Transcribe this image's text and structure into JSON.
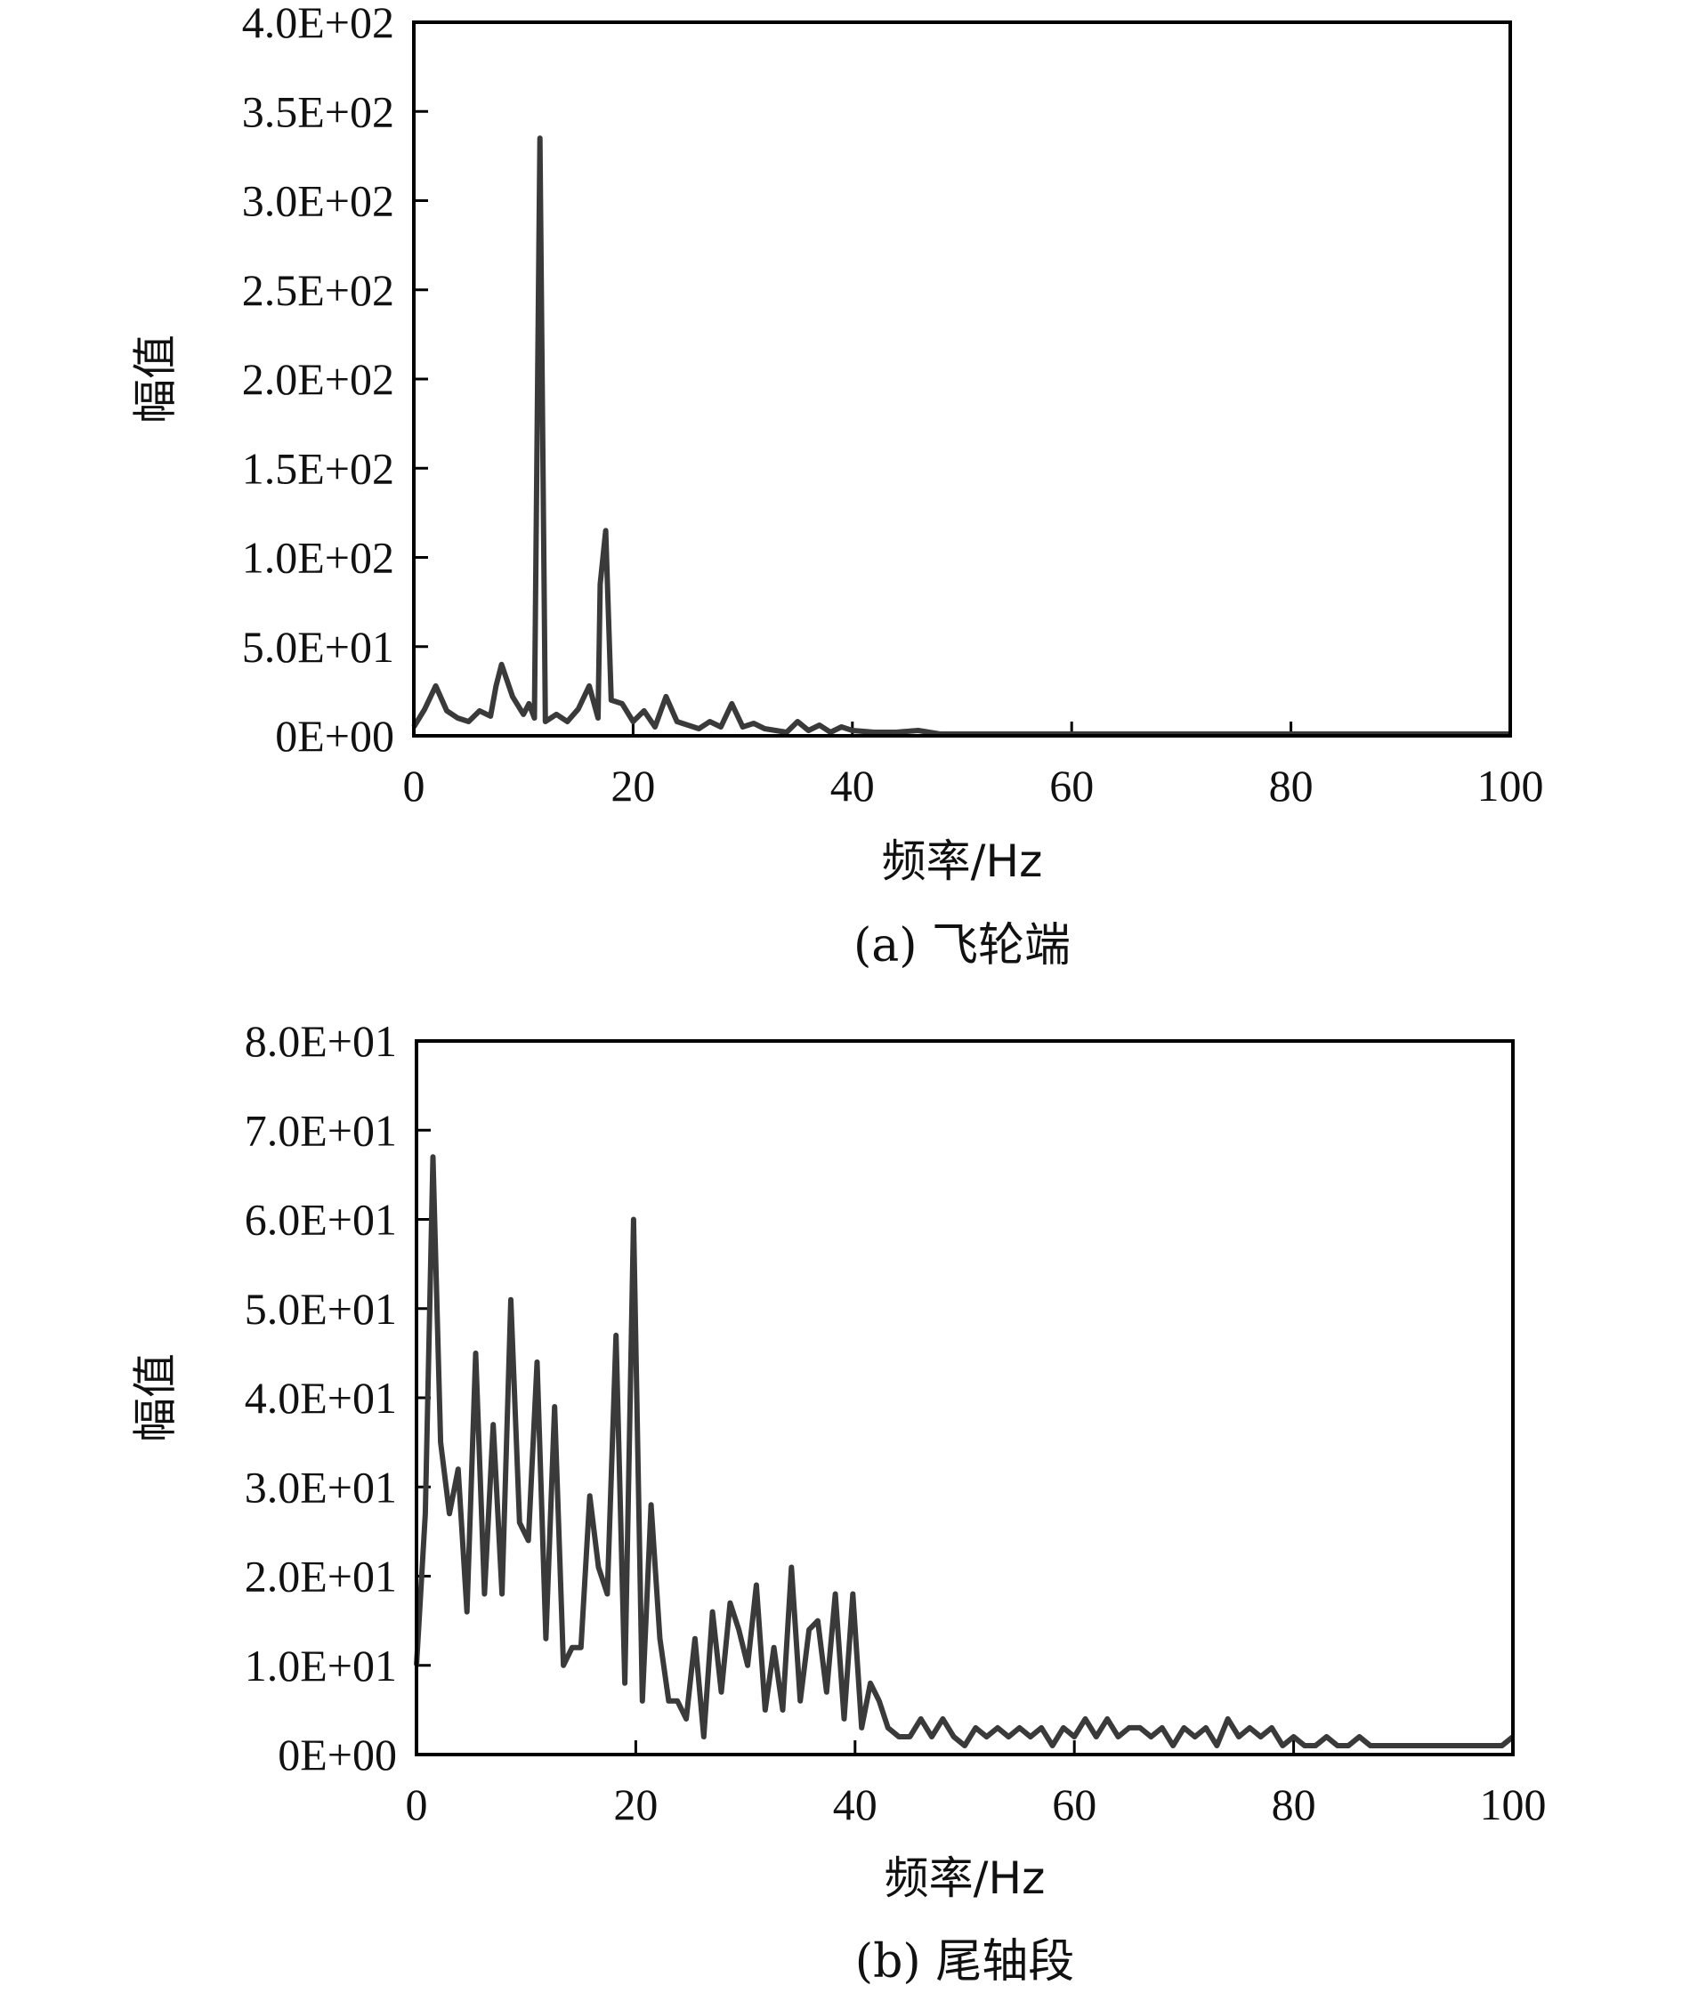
{
  "chart_data": [
    {
      "type": "line",
      "caption": "(a) 飞轮端",
      "xlabel": "频率/Hz",
      "ylabel": "幅值",
      "xlim": [
        0,
        100
      ],
      "ylim": [
        0,
        400
      ],
      "xticks": [
        0,
        20,
        40,
        60,
        80,
        100
      ],
      "xtick_labels": [
        "0",
        "20",
        "40",
        "60",
        "80",
        "100"
      ],
      "yticks": [
        0,
        50,
        100,
        150,
        200,
        250,
        300,
        350,
        400
      ],
      "ytick_labels": [
        "0E+00",
        "5.0E+01",
        "1.0E+02",
        "1.5E+02",
        "2.0E+02",
        "2.5E+02",
        "3.0E+02",
        "3.5E+02",
        "4.0E+02"
      ],
      "grid": false,
      "line_color": "#3a3a3a",
      "series": [
        {
          "x": [
            0,
            1,
            2,
            3,
            4,
            5,
            6,
            7,
            7.5,
            8,
            9,
            10,
            10.5,
            11,
            11.5,
            12,
            13,
            14,
            15,
            16,
            16.8,
            17,
            17.5,
            18,
            19,
            20,
            21,
            22,
            23,
            24,
            25,
            26,
            27,
            28,
            29,
            30,
            31,
            32,
            33,
            34,
            35,
            36,
            37,
            38,
            39,
            40,
            42,
            44,
            46,
            48,
            50,
            60,
            70,
            80,
            90,
            100
          ],
          "y": [
            5,
            15,
            28,
            14,
            10,
            8,
            14,
            11,
            28,
            40,
            22,
            12,
            18,
            10,
            335,
            8,
            12,
            8,
            15,
            28,
            10,
            85,
            115,
            20,
            18,
            8,
            14,
            5,
            22,
            8,
            6,
            4,
            8,
            5,
            18,
            5,
            7,
            4,
            3,
            2,
            8,
            3,
            6,
            2,
            5,
            3,
            2,
            2,
            3,
            1,
            1,
            1,
            1,
            1,
            1,
            1
          ]
        }
      ]
    },
    {
      "type": "line",
      "caption": "(b) 尾轴段",
      "xlabel": "频率/Hz",
      "ylabel": "幅值",
      "xlim": [
        0,
        100
      ],
      "ylim": [
        0,
        80
      ],
      "xticks": [
        0,
        20,
        40,
        60,
        80,
        100
      ],
      "xtick_labels": [
        "0",
        "20",
        "40",
        "60",
        "80",
        "100"
      ],
      "yticks": [
        0,
        10,
        20,
        30,
        40,
        50,
        60,
        70,
        80
      ],
      "ytick_labels": [
        "0E+00",
        "1.0E+01",
        "2.0E+01",
        "3.0E+01",
        "4.0E+01",
        "5.0E+01",
        "6.0E+01",
        "7.0E+01",
        "8.0E+01"
      ],
      "grid": false,
      "line_color": "#3a3a3a",
      "series": [
        {
          "x": [
            0,
            0.8,
            1.5,
            2.2,
            3,
            3.8,
            4.6,
            5.4,
            6.2,
            7,
            7.8,
            8.6,
            9.4,
            10.2,
            11,
            11.8,
            12.6,
            13.4,
            14.2,
            15,
            15.8,
            16.6,
            17.4,
            18.2,
            19,
            19.8,
            20.6,
            21.4,
            22.2,
            23,
            23.8,
            24.6,
            25.4,
            26.2,
            27,
            27.8,
            28.6,
            29.4,
            30.2,
            31,
            31.8,
            32.6,
            33.4,
            34.2,
            35,
            35.8,
            36.6,
            37.4,
            38.2,
            39,
            39.8,
            40.6,
            41.4,
            42.2,
            43,
            44,
            45,
            46,
            47,
            48,
            49,
            50,
            51,
            52,
            53,
            54,
            55,
            56,
            57,
            58,
            59,
            60,
            61,
            62,
            63,
            64,
            65,
            66,
            67,
            68,
            69,
            70,
            71,
            72,
            73,
            74,
            75,
            76,
            77,
            78,
            79,
            80,
            81,
            82,
            83,
            84,
            85,
            86,
            87,
            88,
            89,
            90,
            91,
            92,
            93,
            94,
            95,
            96,
            97,
            98,
            99,
            100
          ],
          "y": [
            10,
            27,
            67,
            35,
            27,
            32,
            16,
            45,
            18,
            37,
            18,
            51,
            26,
            24,
            44,
            13,
            39,
            10,
            12,
            12,
            29,
            21,
            18,
            47,
            8,
            60,
            6,
            28,
            13,
            6,
            6,
            4,
            13,
            2,
            16,
            7,
            17,
            14,
            10,
            19,
            5,
            12,
            5,
            21,
            6,
            14,
            15,
            7,
            18,
            4,
            18,
            3,
            8,
            6,
            3,
            2,
            2,
            4,
            2,
            4,
            2,
            1,
            3,
            2,
            3,
            2,
            3,
            2,
            3,
            1,
            3,
            2,
            4,
            2,
            4,
            2,
            3,
            3,
            2,
            3,
            1,
            3,
            2,
            3,
            1,
            4,
            2,
            3,
            2,
            3,
            1,
            2,
            1,
            1,
            2,
            1,
            1,
            2,
            1,
            1,
            1,
            1,
            1,
            1,
            1,
            1,
            1,
            1,
            1,
            1,
            1,
            2
          ]
        }
      ]
    }
  ]
}
